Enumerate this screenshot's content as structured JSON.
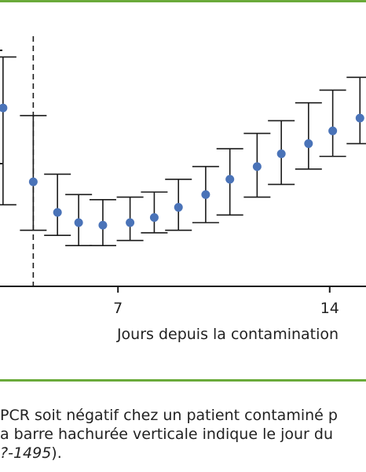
{
  "chart_data": {
    "type": "scatter",
    "xlabel": "Jours depuis la contamination",
    "ylabel": "",
    "x_ticks": [
      7,
      14
    ],
    "xlim": [
      3.1,
      15.2
    ],
    "ylim": [
      0,
      1
    ],
    "reference_line_x": 4.2,
    "series": [
      {
        "x": [
          3.2,
          4.2,
          5.0,
          5.7,
          6.5,
          7.4,
          8.2,
          9.0,
          9.9,
          10.7,
          11.6,
          12.4,
          13.3,
          14.1,
          15.0
        ],
        "values": [
          0.7,
          0.41,
          0.29,
          0.25,
          0.24,
          0.25,
          0.27,
          0.31,
          0.36,
          0.42,
          0.47,
          0.52,
          0.56,
          0.61,
          0.66
        ],
        "lower": [
          0.32,
          0.22,
          0.2,
          0.16,
          0.16,
          0.18,
          0.21,
          0.22,
          0.25,
          0.28,
          0.35,
          0.4,
          0.46,
          0.51,
          0.56
        ],
        "upper": [
          0.9,
          0.67,
          0.44,
          0.36,
          0.34,
          0.35,
          0.37,
          0.42,
          0.47,
          0.54,
          0.6,
          0.65,
          0.72,
          0.77,
          0.82
        ]
      }
    ]
  },
  "caption": {
    "line1": "PCR soit négatif chez un patient contaminé p",
    "line2": "a barre hachurée verticale indique le jour du",
    "line3_italic": "?-1495",
    "line3_rest": ")."
  },
  "colors": {
    "point": "#4a73b8",
    "error_bar": "#1a1a1a",
    "rule": "#6aaa3a"
  }
}
